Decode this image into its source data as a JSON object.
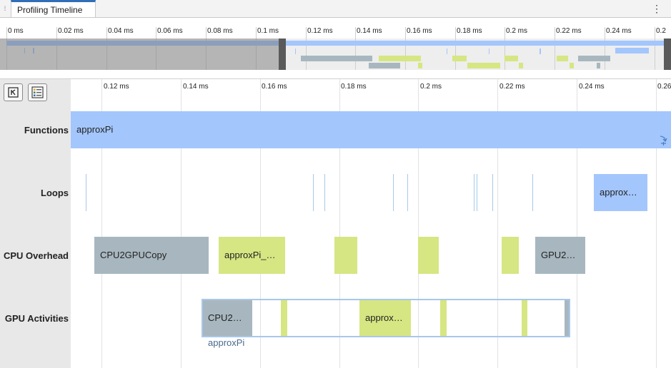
{
  "tab": {
    "title": "Profiling Timeline"
  },
  "overview": {
    "ticks": [
      "0 ms",
      "0.02 ms",
      "0.04 ms",
      "0.06 ms",
      "0.08 ms",
      "0.1 ms",
      "0.12 ms",
      "0.14 ms",
      "0.16 ms",
      "0.18 ms",
      "0.2 ms",
      "0.22 ms",
      "0.24 ms",
      "0.2"
    ]
  },
  "timeline": {
    "ticks": [
      "0.12 ms",
      "0.14 ms",
      "0.16 ms",
      "0.18 ms",
      "0.2 ms",
      "0.22 ms",
      "0.24 ms",
      "0.26"
    ]
  },
  "lanes": {
    "functions": {
      "label": "Functions",
      "bar_label": "approxPi"
    },
    "loops": {
      "label": "Loops",
      "bar_label": "approx…"
    },
    "cpu": {
      "label": "CPU Overhead",
      "bars": [
        "CPU2GPUCopy",
        "approxPi_…",
        "GPU2…"
      ]
    },
    "gpu": {
      "label": "GPU Activities",
      "bars": [
        "CPU2…",
        "approx…"
      ],
      "group_label": "approxPi"
    }
  },
  "colors": {
    "function": "#a3c6fd",
    "copy": "#a8b7bf",
    "kernel": "#d6e682",
    "accent": "#2f6fb6"
  },
  "icons": {
    "grip": "grip-icon",
    "menu": "more-options-icon",
    "k": "keyboard-shortcuts-icon",
    "legend": "legend-icon",
    "expand": "expand-icon"
  }
}
